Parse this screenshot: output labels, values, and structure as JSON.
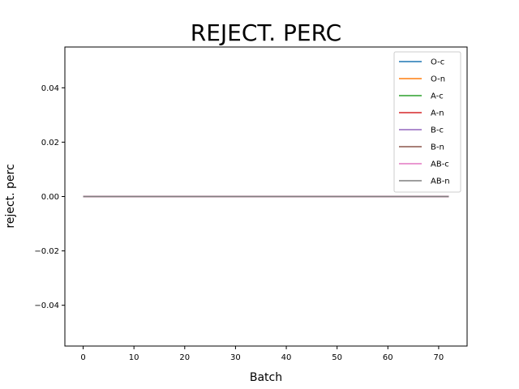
{
  "chart_data": {
    "type": "line",
    "title": "REJECT. PERC",
    "xlabel": "Batch",
    "ylabel": "reject. perc",
    "xlim": [
      -3.6,
      75.6
    ],
    "ylim": [
      -0.055,
      0.055
    ],
    "xticks": [
      0,
      10,
      20,
      30,
      40,
      50,
      60,
      70
    ],
    "xtick_labels": [
      "0",
      "10",
      "20",
      "30",
      "40",
      "50",
      "60",
      "70"
    ],
    "yticks": [
      -0.04,
      -0.02,
      0.0,
      0.02,
      0.04
    ],
    "ytick_labels": [
      "−0.04",
      "−0.02",
      "0.00",
      "0.02",
      "0.04"
    ],
    "grid": false,
    "legend_position": "top-right",
    "x_range": [
      0,
      72
    ],
    "series": [
      {
        "name": "O-c",
        "color": "#1f77b4",
        "value": 0
      },
      {
        "name": "O-n",
        "color": "#ff7f0e",
        "value": 0
      },
      {
        "name": "A-c",
        "color": "#2ca02c",
        "value": 0
      },
      {
        "name": "A-n",
        "color": "#d62728",
        "value": 0
      },
      {
        "name": "B-c",
        "color": "#9467bd",
        "value": 0
      },
      {
        "name": "B-n",
        "color": "#8c564b",
        "value": 0
      },
      {
        "name": "AB-c",
        "color": "#e377c2",
        "value": 0
      },
      {
        "name": "AB-n",
        "color": "#7f7f7f",
        "value": 0
      }
    ]
  }
}
